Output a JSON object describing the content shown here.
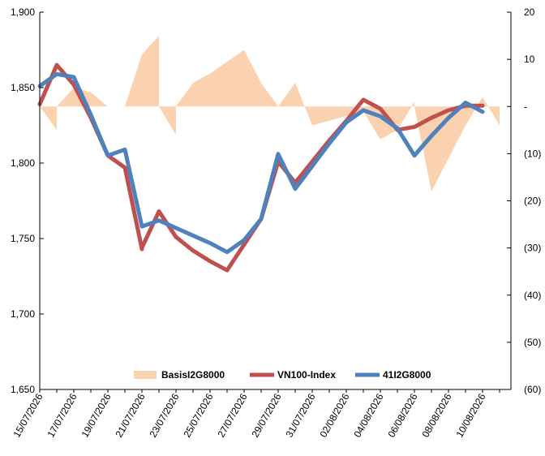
{
  "chart_data": {
    "type": "line",
    "title": "",
    "xlabel": "",
    "ylabel": "",
    "x": [
      "15/07/2026",
      "16/07/2026",
      "17/07/2026",
      "18/07/2026",
      "19/07/2026",
      "20/07/2026",
      "21/07/2026",
      "22/07/2026",
      "23/07/2026",
      "24/07/2026",
      "25/07/2026",
      "26/07/2026",
      "27/07/2026",
      "28/07/2026",
      "29/07/2026",
      "30/07/2026",
      "31/07/2026",
      "01/08/2026",
      "02/08/2026",
      "03/08/2026",
      "04/08/2026",
      "05/08/2026",
      "06/08/2026",
      "07/08/2026",
      "08/08/2026",
      "09/08/2026",
      "10/08/2026",
      "11/08/2026"
    ],
    "x_tick_labels": [
      "15/07/2026",
      "17/07/2026",
      "19/07/2026",
      "21/07/2026",
      "23/07/2026",
      "25/07/2026",
      "27/07/2026",
      "29/07/2026",
      "31/07/2026",
      "02/08/2026",
      "04/08/2026",
      "06/08/2026",
      "08/08/2026",
      "10/08/2026"
    ],
    "y_left": {
      "ylim": [
        1650,
        1900
      ],
      "ticks": [
        1650,
        1700,
        1750,
        1800,
        1850,
        1900
      ],
      "tick_labels": [
        "1,650",
        "1,700",
        "1,750",
        "1,800",
        "1,850",
        "1,900"
      ]
    },
    "y_right": {
      "ylim": [
        -60,
        20
      ],
      "ticks": [
        20,
        10,
        0,
        -10,
        -20,
        -30,
        -40,
        -50,
        -60
      ],
      "tick_labels": [
        "20",
        "10",
        "-",
        "(10)",
        "(20)",
        "(30)",
        "(40)",
        "(50)",
        "(60)"
      ]
    },
    "series": [
      {
        "name": "BasisI2G8000",
        "kind": "area",
        "axis": "right",
        "color": "#fad2b0",
        "points": [
          [
            "15/07/2026",
            11
          ],
          [
            "15/07/2026",
            0
          ],
          [
            "16/07/2026",
            -5
          ],
          [
            "16/07/2026",
            0
          ],
          [
            "17/07/2026",
            4
          ],
          [
            "18/07/2026",
            3
          ],
          [
            "19/07/2026",
            0
          ],
          [
            "20/07/2026",
            0
          ],
          [
            "21/07/2026",
            11
          ],
          [
            "22/07/2026",
            15
          ],
          [
            "22/07/2026",
            0
          ],
          [
            "23/07/2026",
            -6
          ],
          [
            "23/07/2026",
            0
          ],
          [
            "24/07/2026",
            5
          ],
          [
            "25/07/2026",
            7
          ],
          [
            "27/07/2026",
            12
          ],
          [
            "28/07/2026",
            5
          ],
          [
            "29/07/2026",
            0
          ],
          [
            "30/07/2026",
            5
          ],
          [
            "31/07/2026",
            -4
          ],
          [
            "01/08/2026",
            -3
          ],
          [
            "02/08/2026",
            -2
          ],
          [
            "03/08/2026",
            -1
          ],
          [
            "04/08/2026",
            -7
          ],
          [
            "05/08/2026",
            -5
          ],
          [
            "06/08/2026",
            1
          ],
          [
            "06/08/2026",
            0
          ],
          [
            "07/08/2026",
            -18
          ],
          [
            "08/08/2026",
            -11
          ],
          [
            "09/08/2026",
            -4
          ],
          [
            "10/08/2026",
            2
          ],
          [
            "11/08/2026",
            -4
          ]
        ]
      },
      {
        "name": "VN100-Index",
        "kind": "line",
        "axis": "left",
        "color": "#c0504d",
        "points": [
          [
            "15/07/2026",
            1839
          ],
          [
            "16/07/2026",
            1865
          ],
          [
            "17/07/2026",
            1852
          ],
          [
            "18/07/2026",
            1830
          ],
          [
            "19/07/2026",
            1805
          ],
          [
            "20/07/2026",
            1797
          ],
          [
            "21/07/2026",
            1743
          ],
          [
            "21/07/2026",
            1744
          ],
          [
            "22/07/2026",
            1768
          ],
          [
            "23/07/2026",
            1751
          ],
          [
            "24/07/2026",
            1742
          ],
          [
            "25/07/2026",
            1735
          ],
          [
            "26/07/2026",
            1729
          ],
          [
            "27/07/2026",
            1746
          ],
          [
            "28/07/2026",
            1763
          ],
          [
            "29/07/2026",
            1801
          ],
          [
            "30/07/2026",
            1787
          ],
          [
            "31/07/2026",
            1801
          ],
          [
            "01/08/2026",
            1815
          ],
          [
            "02/08/2026",
            1828
          ],
          [
            "03/08/2026",
            1842
          ],
          [
            "04/08/2026",
            1836
          ],
          [
            "05/08/2026",
            1822
          ],
          [
            "06/08/2026",
            1824
          ],
          [
            "07/08/2026",
            1830
          ],
          [
            "08/08/2026",
            1835
          ],
          [
            "09/08/2026",
            1838
          ],
          [
            "10/08/2026",
            1838
          ]
        ]
      },
      {
        "name": "41I2G8000",
        "kind": "line",
        "axis": "left",
        "color": "#4f81bd",
        "points": [
          [
            "15/07/2026",
            1851
          ],
          [
            "16/07/2026",
            1859
          ],
          [
            "17/07/2026",
            1857
          ],
          [
            "18/07/2026",
            1832
          ],
          [
            "19/07/2026",
            1805
          ],
          [
            "20/07/2026",
            1809
          ],
          [
            "21/07/2026",
            1758
          ],
          [
            "22/07/2026",
            1762
          ],
          [
            "23/07/2026",
            1757
          ],
          [
            "24/07/2026",
            1752
          ],
          [
            "25/07/2026",
            1747
          ],
          [
            "26/07/2026",
            1741
          ],
          [
            "27/07/2026",
            1749
          ],
          [
            "28/07/2026",
            1763
          ],
          [
            "29/07/2026",
            1806
          ],
          [
            "30/07/2026",
            1783
          ],
          [
            "31/07/2026",
            1798
          ],
          [
            "01/08/2026",
            1813
          ],
          [
            "02/08/2026",
            1827
          ],
          [
            "03/08/2026",
            1835
          ],
          [
            "04/08/2026",
            1831
          ],
          [
            "05/08/2026",
            1823
          ],
          [
            "06/08/2026",
            1805
          ],
          [
            "07/08/2026",
            1818
          ],
          [
            "08/08/2026",
            1830
          ],
          [
            "09/08/2026",
            1840
          ],
          [
            "10/08/2026",
            1834
          ]
        ]
      }
    ],
    "legend": {
      "position": "bottom-inside"
    },
    "grid": false
  }
}
